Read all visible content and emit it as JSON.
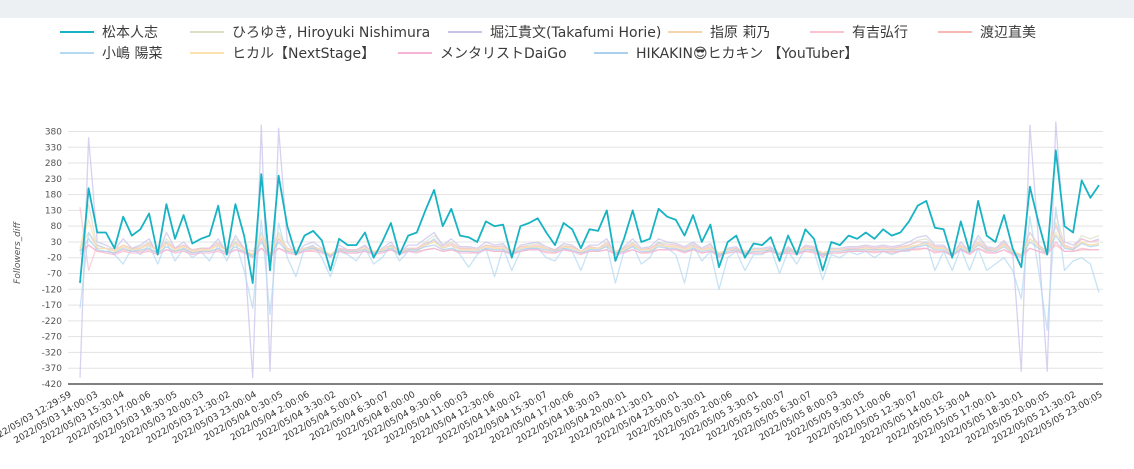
{
  "chart_data": {
    "type": "line",
    "ylabel": "Followers_diff",
    "xlabel": "",
    "ylim": [
      -420,
      410
    ],
    "y_ticks": [
      380,
      330,
      280,
      230,
      180,
      130,
      80,
      30,
      -20,
      -70,
      -120,
      -170,
      -220,
      -270,
      -320,
      -370,
      -420
    ],
    "legend_position": "top",
    "x_tick_labels": [
      "22/05/03 12:29:59",
      "2022/05/03 14:00:03",
      "2022/05/03 15:30:04",
      "2022/05/03 17:00:06",
      "2022/05/03 18:30:05",
      "2022/05/03 20:00:03",
      "2022/05/03 21:30:02",
      "2022/05/03 23:00:04",
      "2022/05/04 0:30:05",
      "2022/05/04 2:00:06",
      "2022/05/04 3:30:02",
      "2022/05/04 5:00:01",
      "2022/05/04 6:30:07",
      "2022/05/04 8:00:00",
      "2022/05/04 9:30:06",
      "2022/05/04 11:00:03",
      "2022/05/04 12:30:06",
      "2022/05/04 14:00:02",
      "2022/05/04 15:30:07",
      "2022/05/04 17:00:06",
      "2022/05/04 18:30:03",
      "2022/05/04 20:00:01",
      "2022/05/04 21:30:01",
      "2022/05/04 23:00:01",
      "2022/05/05 0:30:01",
      "2022/05/05 2:00:06",
      "2022/05/05 3:30:01",
      "2022/05/05 5:00:07",
      "2022/05/05 6:30:07",
      "2022/05/05 8:00:03",
      "2022/05/05 9:30:05",
      "2022/05/05 11:00:06",
      "2022/05/05 12:30:07",
      "2022/05/05 14:00:02",
      "2022/05/05 15:30:04",
      "2022/05/05 17:00:01",
      "2022/05/05 18:30:01",
      "2022/05/05 20:00:05",
      "2022/05/05 21:30:02",
      "2022/05/05 23:00:05"
    ],
    "series": [
      {
        "name": "松本人志",
        "color": "#17b3c3",
        "values": [
          -100,
          200,
          60,
          60,
          10,
          110,
          50,
          70,
          120,
          -10,
          150,
          40,
          115,
          25,
          40,
          50,
          145,
          -10,
          150,
          50,
          -100,
          245,
          -60,
          240,
          80,
          -10,
          50,
          65,
          35,
          -60,
          40,
          20,
          20,
          60,
          -20,
          30,
          90,
          -10,
          50,
          60,
          130,
          195,
          80,
          135,
          50,
          45,
          30,
          95,
          80,
          85,
          -20,
          80,
          90,
          105,
          60,
          20,
          90,
          70,
          10,
          70,
          65,
          130,
          -30,
          40,
          130,
          30,
          40,
          135,
          110,
          100,
          50,
          115,
          30,
          85,
          -50,
          30,
          50,
          -20,
          25,
          20,
          45,
          -30,
          50,
          -10,
          70,
          40,
          -60,
          30,
          20,
          50,
          40,
          60,
          40,
          70,
          50,
          60,
          95,
          145,
          160,
          75,
          70,
          -20,
          95,
          0,
          160,
          50,
          30,
          115,
          10,
          -50,
          205,
          90,
          -10,
          320,
          80,
          60,
          225,
          170,
          210
        ]
      },
      {
        "name": "ひろゆき, Hiroyuki Nishimura",
        "color": "#d9e0c8",
        "values": [
          0,
          150,
          10,
          10,
          5,
          20,
          10,
          15,
          30,
          0,
          40,
          10,
          20,
          5,
          10,
          10,
          30,
          0,
          40,
          10,
          -20,
          60,
          -10,
          60,
          10,
          0,
          10,
          15,
          5,
          -10,
          10,
          5,
          5,
          15,
          0,
          5,
          20,
          0,
          10,
          10,
          30,
          50,
          20,
          30,
          10,
          10,
          5,
          20,
          15,
          20,
          0,
          15,
          20,
          25,
          10,
          5,
          20,
          15,
          0,
          15,
          10,
          30,
          0,
          10,
          30,
          5,
          10,
          30,
          25,
          20,
          10,
          25,
          5,
          20,
          -10,
          5,
          10,
          0,
          5,
          5,
          10,
          -5,
          10,
          0,
          15,
          10,
          -10,
          5,
          5,
          10,
          10,
          15,
          10,
          15,
          10,
          15,
          20,
          35,
          40,
          15,
          15,
          -5,
          20,
          0,
          40,
          10,
          5,
          30,
          0,
          -10,
          60,
          20,
          0,
          120,
          20,
          10,
          50,
          40,
          50
        ]
      },
      {
        "name": "堀江貴文(Takafumi Horie)",
        "color": "#c9c3ec",
        "values": [
          -400,
          360,
          30,
          20,
          5,
          40,
          10,
          20,
          40,
          -10,
          60,
          10,
          30,
          0,
          10,
          10,
          40,
          -5,
          50,
          10,
          -400,
          400,
          -380,
          390,
          30,
          -10,
          20,
          30,
          10,
          -20,
          20,
          5,
          5,
          20,
          -10,
          10,
          30,
          -5,
          20,
          20,
          40,
          60,
          20,
          40,
          15,
          15,
          10,
          30,
          20,
          25,
          -10,
          20,
          25,
          30,
          15,
          5,
          25,
          20,
          0,
          20,
          20,
          40,
          -10,
          15,
          40,
          10,
          15,
          40,
          30,
          25,
          15,
          30,
          10,
          25,
          -20,
          10,
          15,
          -10,
          10,
          10,
          15,
          -10,
          15,
          -5,
          20,
          15,
          -20,
          10,
          10,
          15,
          15,
          20,
          15,
          20,
          15,
          20,
          30,
          45,
          50,
          20,
          20,
          -10,
          30,
          0,
          50,
          15,
          10,
          35,
          0,
          -380,
          400,
          30,
          -380,
          410,
          30,
          20,
          40,
          30,
          40
        ]
      },
      {
        "name": "指原 莉乃",
        "color": "#f5d4ac",
        "values": [
          10,
          60,
          10,
          10,
          0,
          15,
          5,
          10,
          20,
          0,
          25,
          5,
          15,
          0,
          5,
          5,
          20,
          0,
          25,
          5,
          -10,
          40,
          -10,
          40,
          5,
          0,
          10,
          10,
          5,
          -10,
          5,
          0,
          0,
          10,
          0,
          5,
          15,
          0,
          5,
          5,
          20,
          30,
          10,
          20,
          5,
          5,
          5,
          15,
          10,
          10,
          0,
          10,
          15,
          15,
          10,
          0,
          15,
          10,
          0,
          10,
          10,
          20,
          0,
          5,
          20,
          5,
          5,
          20,
          15,
          15,
          5,
          15,
          5,
          10,
          -5,
          5,
          5,
          0,
          5,
          5,
          5,
          -5,
          5,
          0,
          10,
          5,
          -5,
          5,
          5,
          5,
          5,
          10,
          5,
          10,
          5,
          10,
          15,
          20,
          25,
          10,
          10,
          -5,
          15,
          0,
          25,
          5,
          5,
          20,
          0,
          -10,
          40,
          15,
          -5,
          90,
          15,
          5,
          30,
          20,
          25
        ]
      },
      {
        "name": "有吉弘行",
        "color": "#f8c3cf",
        "values": [
          140,
          -60,
          20,
          10,
          5,
          20,
          10,
          10,
          25,
          0,
          30,
          10,
          20,
          5,
          10,
          10,
          25,
          0,
          30,
          10,
          0,
          40,
          -20,
          40,
          10,
          0,
          10,
          15,
          5,
          -10,
          10,
          5,
          5,
          15,
          0,
          5,
          20,
          0,
          10,
          10,
          25,
          35,
          15,
          25,
          10,
          10,
          5,
          20,
          15,
          15,
          0,
          15,
          15,
          20,
          10,
          5,
          15,
          15,
          0,
          15,
          10,
          25,
          0,
          10,
          25,
          5,
          10,
          25,
          20,
          20,
          10,
          20,
          5,
          15,
          -5,
          5,
          10,
          0,
          5,
          5,
          10,
          -5,
          10,
          0,
          15,
          10,
          -5,
          5,
          5,
          10,
          10,
          15,
          10,
          15,
          10,
          15,
          20,
          30,
          30,
          15,
          15,
          -5,
          20,
          0,
          30,
          10,
          5,
          25,
          0,
          -10,
          60,
          20,
          0,
          80,
          20,
          10,
          40,
          30,
          35
        ]
      },
      {
        "name": "渡辺直美",
        "color": "#f7b9b1",
        "values": [
          0,
          20,
          0,
          0,
          -5,
          5,
          0,
          0,
          5,
          -5,
          5,
          0,
          5,
          -5,
          0,
          0,
          5,
          -5,
          5,
          0,
          -10,
          10,
          -10,
          10,
          0,
          -5,
          0,
          5,
          0,
          -10,
          0,
          -5,
          -5,
          0,
          -5,
          0,
          5,
          -5,
          0,
          0,
          5,
          10,
          0,
          5,
          0,
          0,
          -5,
          5,
          0,
          0,
          -5,
          0,
          5,
          5,
          0,
          -5,
          5,
          0,
          -5,
          0,
          0,
          5,
          -5,
          0,
          5,
          -5,
          0,
          5,
          5,
          5,
          0,
          5,
          -5,
          0,
          -10,
          -5,
          0,
          -5,
          -5,
          -5,
          0,
          -10,
          0,
          -5,
          0,
          0,
          -10,
          -5,
          -5,
          0,
          0,
          0,
          0,
          0,
          0,
          0,
          5,
          5,
          10,
          0,
          0,
          -10,
          5,
          -5,
          10,
          0,
          -5,
          5,
          -5,
          -10,
          10,
          0,
          -5,
          20,
          0,
          0,
          5,
          5,
          5
        ]
      },
      {
        "name": "小嶋 陽菜",
        "color": "#b6d9f2",
        "values": [
          -180,
          60,
          20,
          10,
          -10,
          -40,
          10,
          -10,
          20,
          -40,
          30,
          -30,
          10,
          -20,
          0,
          -30,
          20,
          -30,
          30,
          -60,
          -180,
          100,
          -200,
          90,
          -20,
          -80,
          10,
          20,
          -20,
          -80,
          0,
          -10,
          -30,
          10,
          -40,
          -20,
          20,
          -30,
          0,
          0,
          20,
          40,
          10,
          20,
          -10,
          -50,
          -10,
          10,
          -80,
          10,
          -60,
          0,
          10,
          10,
          -20,
          -30,
          10,
          0,
          -60,
          10,
          0,
          20,
          -100,
          0,
          20,
          -40,
          -20,
          30,
          10,
          -10,
          -100,
          20,
          -30,
          0,
          -120,
          -20,
          0,
          -60,
          -10,
          -10,
          10,
          -70,
          0,
          -40,
          10,
          0,
          -90,
          -10,
          -20,
          0,
          -10,
          0,
          -20,
          0,
          -10,
          0,
          0,
          20,
          30,
          -60,
          0,
          -60,
          10,
          -60,
          10,
          -60,
          -40,
          -20,
          -60,
          -150,
          110,
          -60,
          -250,
          140,
          -60,
          -30,
          -20,
          -40,
          -130
        ]
      },
      {
        "name": "ヒカル【NextStage】",
        "color": "#fbe1ad",
        "values": [
          10,
          100,
          10,
          10,
          5,
          20,
          5,
          10,
          20,
          0,
          25,
          5,
          15,
          0,
          5,
          5,
          20,
          0,
          25,
          5,
          -10,
          50,
          -10,
          50,
          5,
          0,
          10,
          10,
          5,
          -10,
          5,
          0,
          0,
          10,
          0,
          5,
          15,
          0,
          5,
          5,
          20,
          30,
          10,
          20,
          5,
          5,
          5,
          15,
          10,
          10,
          0,
          10,
          15,
          15,
          10,
          0,
          15,
          10,
          0,
          10,
          10,
          20,
          0,
          5,
          20,
          5,
          5,
          20,
          15,
          15,
          5,
          15,
          5,
          10,
          -5,
          5,
          5,
          0,
          5,
          5,
          5,
          -5,
          5,
          0,
          10,
          5,
          -5,
          5,
          5,
          5,
          5,
          10,
          5,
          10,
          5,
          10,
          15,
          20,
          25,
          10,
          10,
          -5,
          15,
          0,
          25,
          5,
          5,
          20,
          0,
          -10,
          40,
          15,
          -5,
          60,
          15,
          5,
          30,
          20,
          25
        ]
      },
      {
        "name": "メンタリストDaiGo",
        "color": "#f5b3d6",
        "values": [
          -10,
          20,
          0,
          -5,
          -10,
          0,
          -5,
          -5,
          0,
          -10,
          5,
          -5,
          0,
          -10,
          -5,
          -5,
          0,
          -10,
          5,
          -5,
          -20,
          10,
          -20,
          10,
          -5,
          -10,
          0,
          0,
          -5,
          -15,
          0,
          -5,
          -5,
          0,
          -10,
          -5,
          5,
          -10,
          0,
          -5,
          5,
          10,
          0,
          5,
          -5,
          -5,
          -5,
          5,
          0,
          0,
          -10,
          0,
          5,
          5,
          -5,
          -5,
          5,
          0,
          -10,
          0,
          0,
          5,
          -10,
          -5,
          5,
          -5,
          -5,
          5,
          5,
          5,
          -5,
          5,
          -5,
          0,
          -15,
          -5,
          0,
          -10,
          -5,
          -5,
          0,
          -10,
          -5,
          -10,
          0,
          -5,
          -15,
          -5,
          -5,
          0,
          0,
          0,
          -5,
          0,
          -5,
          0,
          5,
          10,
          10,
          -5,
          0,
          -15,
          5,
          -10,
          10,
          -5,
          -5,
          5,
          -10,
          -20,
          10,
          0,
          -10,
          30,
          0,
          0,
          10,
          5,
          5
        ]
      },
      {
        "name": "HIKAKIN😎ヒカキン 【YouTuber】",
        "color": "#a9d0ef",
        "values": [
          0,
          40,
          5,
          0,
          -5,
          10,
          0,
          5,
          10,
          -5,
          15,
          0,
          10,
          -5,
          0,
          0,
          10,
          -5,
          15,
          0,
          -15,
          30,
          -15,
          30,
          0,
          -5,
          5,
          10,
          0,
          -15,
          5,
          0,
          0,
          5,
          -5,
          0,
          10,
          -5,
          5,
          5,
          15,
          20,
          5,
          10,
          0,
          0,
          0,
          10,
          5,
          5,
          -5,
          5,
          10,
          10,
          5,
          0,
          10,
          5,
          -5,
          5,
          5,
          15,
          -5,
          0,
          15,
          0,
          0,
          15,
          10,
          10,
          0,
          10,
          0,
          5,
          -10,
          0,
          5,
          -5,
          0,
          0,
          5,
          -10,
          5,
          -5,
          5,
          5,
          -10,
          0,
          0,
          5,
          5,
          5,
          5,
          5,
          5,
          5,
          10,
          15,
          20,
          5,
          5,
          -10,
          10,
          -5,
          20,
          5,
          0,
          15,
          -5,
          -15,
          30,
          10,
          -5,
          50,
          10,
          5,
          25,
          15,
          20
        ]
      }
    ]
  }
}
